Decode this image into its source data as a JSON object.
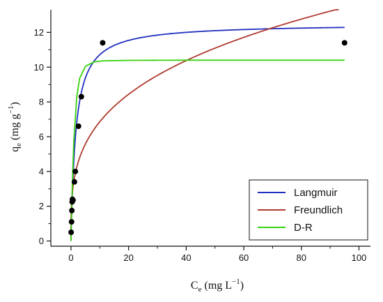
{
  "chart_data": {
    "type": "scatter",
    "title": "",
    "xlabel": {
      "base": "C",
      "sub": "e",
      "rest": " (mg L",
      "sup": "−1",
      "close": ")"
    },
    "ylabel": {
      "base": "q",
      "sub": "e",
      "rest": " (mg g",
      "sup": "−1",
      "close": ")"
    },
    "xlim": [
      -7,
      104
    ],
    "ylim": [
      -0.3,
      13.3
    ],
    "xticks": [
      0,
      20,
      40,
      60,
      80,
      100
    ],
    "yticks": [
      0,
      2,
      4,
      6,
      8,
      10,
      12
    ],
    "grid": false,
    "legend_position": "bottom-right",
    "points": {
      "color": "#000000",
      "x": [
        0.05,
        0.2,
        0.3,
        0.4,
        0.5,
        0.7,
        1.2,
        1.5,
        2.6,
        3.6,
        11.0,
        95.0
      ],
      "y": [
        0.5,
        1.1,
        1.75,
        2.25,
        2.4,
        2.35,
        3.4,
        4.0,
        6.6,
        8.3,
        11.4,
        11.4
      ]
    },
    "series": [
      {
        "name": "Langmuir",
        "color": "#1f2fbf",
        "model": "langmuir",
        "params": {
          "qm": 12.5,
          "KL": 0.6
        },
        "x": [
          0.0,
          1,
          2,
          4,
          6,
          8,
          10,
          15,
          20,
          30,
          40,
          60,
          80,
          95
        ],
        "y": [
          0.0,
          4.69,
          6.82,
          8.82,
          9.78,
          10.34,
          10.71,
          11.19,
          11.47,
          11.76,
          11.91,
          12.11,
          12.22,
          12.28
        ]
      },
      {
        "name": "Freundlich",
        "color": "#b03a2e",
        "model": "freundlich",
        "params": {
          "KF": 3.45,
          "n": 3.35
        },
        "x": [
          0.0,
          1,
          2,
          5,
          10,
          20,
          40,
          60,
          80,
          93
        ],
        "y": [
          0.0,
          3.45,
          4.25,
          5.59,
          6.88,
          8.47,
          10.43,
          11.74,
          12.85,
          13.25
        ]
      },
      {
        "name": "D-R",
        "color": "#39d10f",
        "model": "dubinin-radushkevich",
        "params": {
          "qm": 10.4
        },
        "x": [
          0.0,
          0.5,
          1,
          2,
          3,
          5,
          8,
          11,
          20,
          40,
          60,
          95
        ],
        "y": [
          0.0,
          3.5,
          5.8,
          8.3,
          9.35,
          10.05,
          10.3,
          10.36,
          10.39,
          10.4,
          10.4,
          10.4
        ]
      }
    ]
  }
}
